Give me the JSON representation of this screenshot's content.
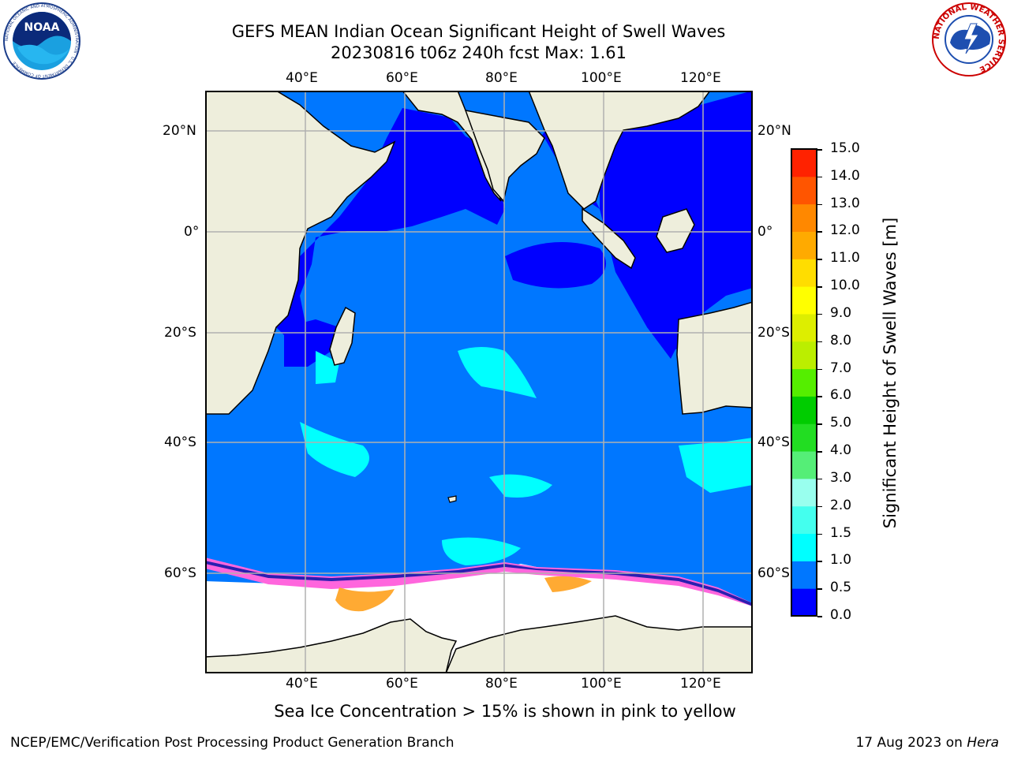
{
  "header": {
    "title_line1": "GEFS MEAN Indian Ocean Significant Height of Swell Waves",
    "title_line2": "20230816 t06z 240h fcst   Max: 1.61"
  },
  "map": {
    "lon_labels": [
      "40°E",
      "60°E",
      "80°E",
      "100°E",
      "120°E"
    ],
    "lat_labels": [
      "20°N",
      "0°",
      "20°S",
      "40°S",
      "60°S"
    ],
    "colors": {
      "land": "#eeeedc",
      "ocean_low": "#0000ff",
      "ocean_mid": "#0077ff",
      "ocean_high": "#00ffff",
      "ice_pink": "#ff66dd",
      "ice_orange": "#ffaa33",
      "grid": "#b0b0b0",
      "white": "#ffffff"
    }
  },
  "colorbar": {
    "label": "Significant Height of Swell Waves [m]",
    "ticks": [
      "0.0",
      "0.5",
      "1.0",
      "1.5",
      "2.0",
      "3.0",
      "4.0",
      "5.0",
      "6.0",
      "7.0",
      "8.0",
      "9.0",
      "10.0",
      "11.0",
      "12.0",
      "13.0",
      "14.0",
      "15.0"
    ],
    "colors": [
      "#0000ff",
      "#0077ff",
      "#00ffff",
      "#44ffee",
      "#99ffee",
      "#55ee77",
      "#22dd22",
      "#00cc00",
      "#55ee00",
      "#bbee00",
      "#ddee00",
      "#ffff00",
      "#ffdd00",
      "#ffaa00",
      "#ff8800",
      "#ff5500",
      "#ff2200",
      "#ff0000"
    ]
  },
  "footer": {
    "note": "Sea Ice Concentration > 15% is shown in pink to yellow",
    "branch": "NCEP/EMC/Verification Post Processing Product Generation Branch",
    "date": "17 Aug 2023 on ",
    "machine": "Hera"
  },
  "logos": {
    "noaa_text": "NOAA",
    "noaa_ring": "NATIONAL OCEANIC AND ATMOSPHERIC ADMINISTRATION · U.S. DEPARTMENT OF COMMERCE",
    "nws_ring": "NATIONAL WEATHER SERVICE"
  }
}
